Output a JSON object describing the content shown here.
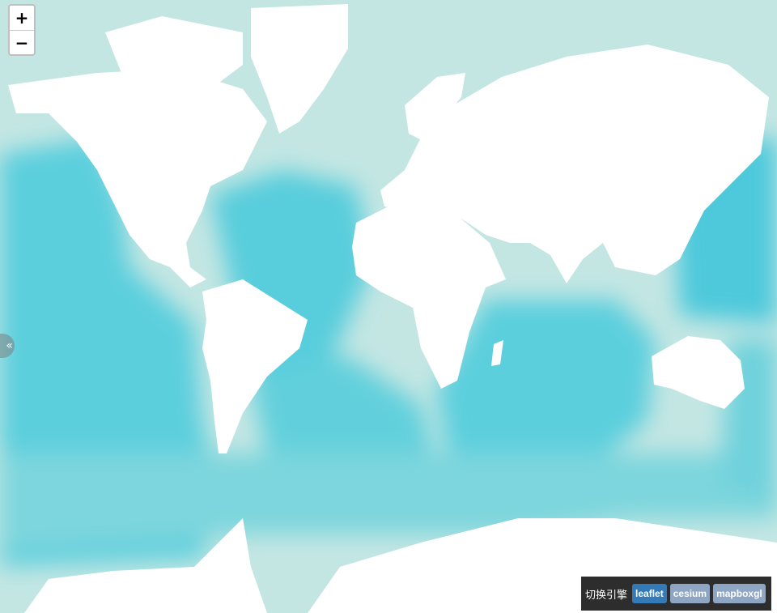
{
  "map": {
    "zoom_in_label": "+",
    "zoom_out_label": "−",
    "side_toggle_label": "«",
    "colors": {
      "ocean_shallow": "#b9e3e0",
      "ocean_mid": "#7fd4da",
      "ocean_deep": "#4ec9db",
      "land": "#ffffff"
    }
  },
  "engine_switcher": {
    "label": "切换引擎",
    "options": [
      {
        "label": "leaflet",
        "active": true
      },
      {
        "label": "cesium",
        "active": false
      },
      {
        "label": "mapboxgl",
        "active": false
      }
    ]
  }
}
